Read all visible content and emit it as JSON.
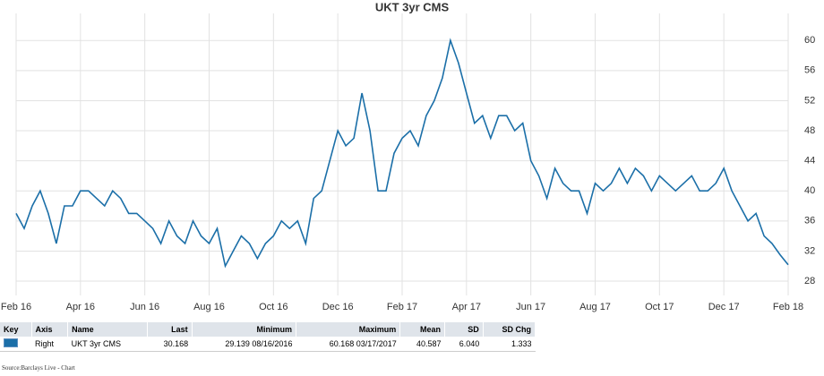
{
  "chart_data": {
    "type": "line",
    "title": "UKT 3yr CMS",
    "categories": [
      "Feb 16",
      null,
      null,
      null,
      null,
      null,
      null,
      null,
      "Apr 16",
      null,
      null,
      null,
      null,
      null,
      null,
      null,
      "Jun 16",
      null,
      null,
      null,
      null,
      null,
      null,
      null,
      "Aug 16",
      null,
      null,
      null,
      null,
      null,
      null,
      null,
      "Oct 16",
      null,
      null,
      null,
      null,
      null,
      null,
      null,
      "Dec 16",
      null,
      null,
      null,
      null,
      null,
      null,
      null,
      "Feb 17",
      null,
      null,
      null,
      null,
      null,
      null,
      null,
      "Apr 17",
      null,
      null,
      null,
      null,
      null,
      null,
      null,
      "Jun 17",
      null,
      null,
      null,
      null,
      null,
      null,
      null,
      "Aug 17",
      null,
      null,
      null,
      null,
      null,
      null,
      null,
      "Oct 17",
      null,
      null,
      null,
      null,
      null,
      null,
      null,
      "Dec 17",
      null,
      null,
      null,
      null,
      null,
      null,
      null,
      "Feb 18"
    ],
    "values": [
      37,
      35,
      38,
      40,
      37,
      33,
      38,
      38,
      40,
      40,
      39,
      38,
      40,
      39,
      37,
      37,
      36,
      35,
      33,
      36,
      34,
      33,
      36,
      34,
      33,
      35,
      30,
      32,
      34,
      33,
      31,
      33,
      34,
      36,
      35,
      36,
      33,
      39,
      40,
      44,
      48,
      46,
      47,
      53,
      48,
      40,
      40,
      45,
      47,
      48,
      46,
      50,
      52,
      55,
      60,
      57,
      53,
      49,
      50,
      47,
      50,
      50,
      48,
      49,
      44,
      42,
      39,
      43,
      41,
      40,
      40,
      37,
      41,
      40,
      41,
      43,
      41,
      43,
      42,
      40,
      42,
      41,
      40,
      41,
      42,
      40,
      40,
      41,
      43,
      40,
      38,
      36,
      37,
      34,
      33,
      31.5,
      30.168
    ],
    "color": "#1b6fa8",
    "ylim": [
      26.1,
      63.6
    ],
    "yticks": [
      28,
      32,
      36,
      40,
      44,
      48,
      52,
      56,
      60
    ],
    "y_axis_side": "right",
    "grid": true
  },
  "key_table": {
    "headers": [
      "Key",
      "Axis",
      "Name",
      "Last",
      "Minimum",
      "Maximum",
      "Mean",
      "SD",
      "SD Chg"
    ],
    "row": [
      "Right",
      "UKT 3yr CMS",
      "30.168",
      "29.139 08/16/2016",
      "60.168 03/17/2017",
      "40.587",
      "6.040",
      "1.333"
    ]
  },
  "source": "Source:Barclays Live - Chart"
}
